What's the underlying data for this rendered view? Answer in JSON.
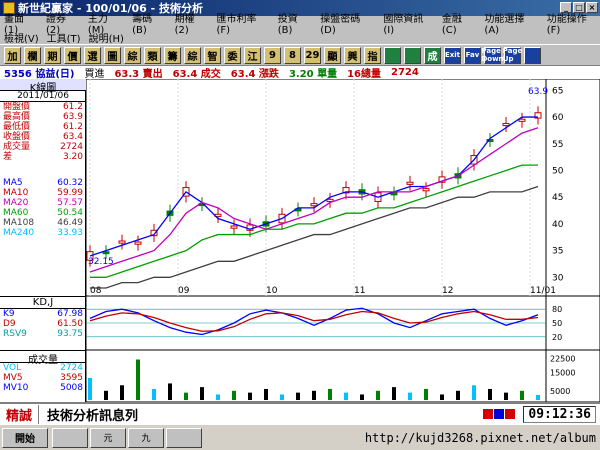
{
  "window": {
    "title": "新世紀贏家 - 100/01/06 - 技術分析"
  },
  "menu": {
    "row1": [
      "畫面(1)",
      "證券(2)",
      "主力(M)",
      "籌碼(B)",
      "期權(2)",
      "匯市利率(F)",
      "投資(B)",
      "操盤密碼(D)",
      "國際資訊(I)",
      "金融(C)",
      "功能選擇(A)",
      "功能操作(F)"
    ],
    "row2": [
      "檢視(V)",
      "工具(T)",
      "說明(H)"
    ]
  },
  "toolbar": {
    "buttons": [
      "加",
      "欄",
      "期",
      "價",
      "選",
      "圖",
      "綜",
      "類",
      "籌",
      "綜",
      "智",
      "委",
      "江",
      "9",
      "8",
      "29",
      "顯",
      "興",
      "指",
      "",
      "",
      "成",
      "Exit",
      "Fav",
      "Page Down",
      "Page Up",
      ""
    ]
  },
  "info": {
    "symbol": "5356 協益(日)",
    "buy_label": "買進",
    "buy_value": "63.3 賣出",
    "sell_value": "63.4 成交",
    "last_value": "63.4 漲跌",
    "change": "3.20 單量",
    "vol_single": "16總量",
    "vol_total": "2724"
  },
  "kpanel": {
    "title": "K線圖",
    "date": "2011/01/06",
    "rows": [
      {
        "k": "開盤價",
        "v": "61.2"
      },
      {
        "k": "最高價",
        "v": "63.9"
      },
      {
        "k": "最低價",
        "v": "61.2"
      },
      {
        "k": "收盤價",
        "v": "63.4"
      },
      {
        "k": "成交量",
        "v": "2724"
      },
      {
        "k": "差",
        "v": "3.20"
      }
    ],
    "ma": [
      {
        "k": "MA5",
        "v": "60.32",
        "c": "#0000ff"
      },
      {
        "k": "MA10",
        "v": "59.99",
        "c": "#c00000"
      },
      {
        "k": "MA20",
        "v": "57.57",
        "c": "#c000c0"
      },
      {
        "k": "MA60",
        "v": "50.54",
        "c": "#00a000"
      },
      {
        "k": "MA108",
        "v": "46.49",
        "c": "#404040"
      },
      {
        "k": "MA240",
        "v": "33.93",
        "c": "#00c0ff"
      }
    ]
  },
  "kdpanel": {
    "title": "KD,J",
    "rows": [
      {
        "k": "K9",
        "v": "67.98",
        "c": "#0000ff"
      },
      {
        "k": "D9",
        "v": "61.50",
        "c": "#c00000"
      },
      {
        "k": "RSV9",
        "v": "93.75",
        "c": "#00a0a0"
      }
    ]
  },
  "volpanel": {
    "title": "成交量",
    "rows": [
      {
        "k": "VOL",
        "v": "2724",
        "c": "#00c0ff"
      },
      {
        "k": "MV5",
        "v": "3595",
        "c": "#c00000"
      },
      {
        "k": "MV10",
        "v": "5008",
        "c": "#0000ff"
      }
    ]
  },
  "status": {
    "tag": "精誠",
    "text": "技術分析訊息列",
    "clock": "09:12:36"
  },
  "taskbar": {
    "start": "開始",
    "tasks": [
      "",
      "元",
      "九",
      ""
    ],
    "watermark": "http://kujd3268.pixnet.net/album"
  },
  "chart_data": [
    {
      "type": "line",
      "title": "K線圖",
      "x_ticks": [
        "08",
        "09",
        "10",
        "11",
        "12",
        "11/01"
      ],
      "y_ticks": [
        30,
        35,
        40,
        45,
        50,
        55,
        60,
        65
      ],
      "ylim": [
        28,
        66
      ],
      "series": [
        {
          "name": "MA5",
          "values": [
            34,
            35,
            36,
            37,
            38,
            42,
            46,
            44,
            41,
            40,
            39,
            40,
            41,
            43,
            43,
            45,
            46,
            46,
            45,
            46,
            47,
            47,
            48,
            49,
            52,
            56,
            58,
            60,
            60
          ]
        },
        {
          "name": "MA20",
          "values": [
            31,
            32,
            33,
            34,
            35,
            38,
            42,
            44,
            43,
            41,
            40,
            39,
            40,
            41,
            42,
            44,
            45,
            45,
            46,
            46,
            46,
            47,
            48,
            49,
            51,
            53,
            55,
            57,
            58
          ]
        },
        {
          "name": "MA60",
          "values": [
            30,
            30,
            31,
            32,
            33,
            34,
            35,
            37,
            38,
            38,
            38,
            39,
            39,
            40,
            40,
            41,
            42,
            42,
            43,
            43,
            44,
            45,
            46,
            47,
            48,
            49,
            50,
            51,
            51
          ]
        },
        {
          "name": "MA108",
          "values": [
            28,
            28,
            29,
            29,
            30,
            30,
            31,
            32,
            33,
            33,
            34,
            35,
            36,
            37,
            38,
            38,
            39,
            40,
            41,
            42,
            43,
            43,
            44,
            45,
            45,
            46,
            46,
            46,
            47
          ]
        }
      ],
      "high_label": "63.9",
      "low_label": "32.15"
    },
    {
      "type": "line",
      "title": "KD,J",
      "y_ticks": [
        20,
        50,
        80
      ],
      "ylim": [
        0,
        100
      ],
      "series": [
        {
          "name": "K9",
          "values": [
            60,
            75,
            80,
            72,
            55,
            40,
            30,
            25,
            35,
            50,
            70,
            78,
            72,
            60,
            45,
            60,
            78,
            82,
            70,
            50,
            40,
            55,
            70,
            75,
            80,
            60,
            45,
            55,
            68
          ]
        },
        {
          "name": "D9",
          "values": [
            55,
            65,
            72,
            70,
            62,
            50,
            40,
            32,
            33,
            42,
            58,
            70,
            72,
            66,
            55,
            58,
            68,
            75,
            72,
            60,
            50,
            52,
            62,
            70,
            75,
            68,
            58,
            58,
            62
          ]
        }
      ]
    },
    {
      "type": "bar",
      "title": "成交量",
      "y_ticks": [
        5000,
        15000,
        22500
      ],
      "ylim": [
        0,
        25000
      ],
      "values": [
        12000,
        5000,
        8000,
        22000,
        6000,
        9000,
        4000,
        7000,
        3000,
        5000,
        4000,
        6000,
        3000,
        4000,
        5000,
        6000,
        4000,
        3000,
        5000,
        7000,
        4000,
        6000,
        3000,
        5000,
        8000,
        6000,
        4000,
        5000,
        2724
      ]
    }
  ]
}
